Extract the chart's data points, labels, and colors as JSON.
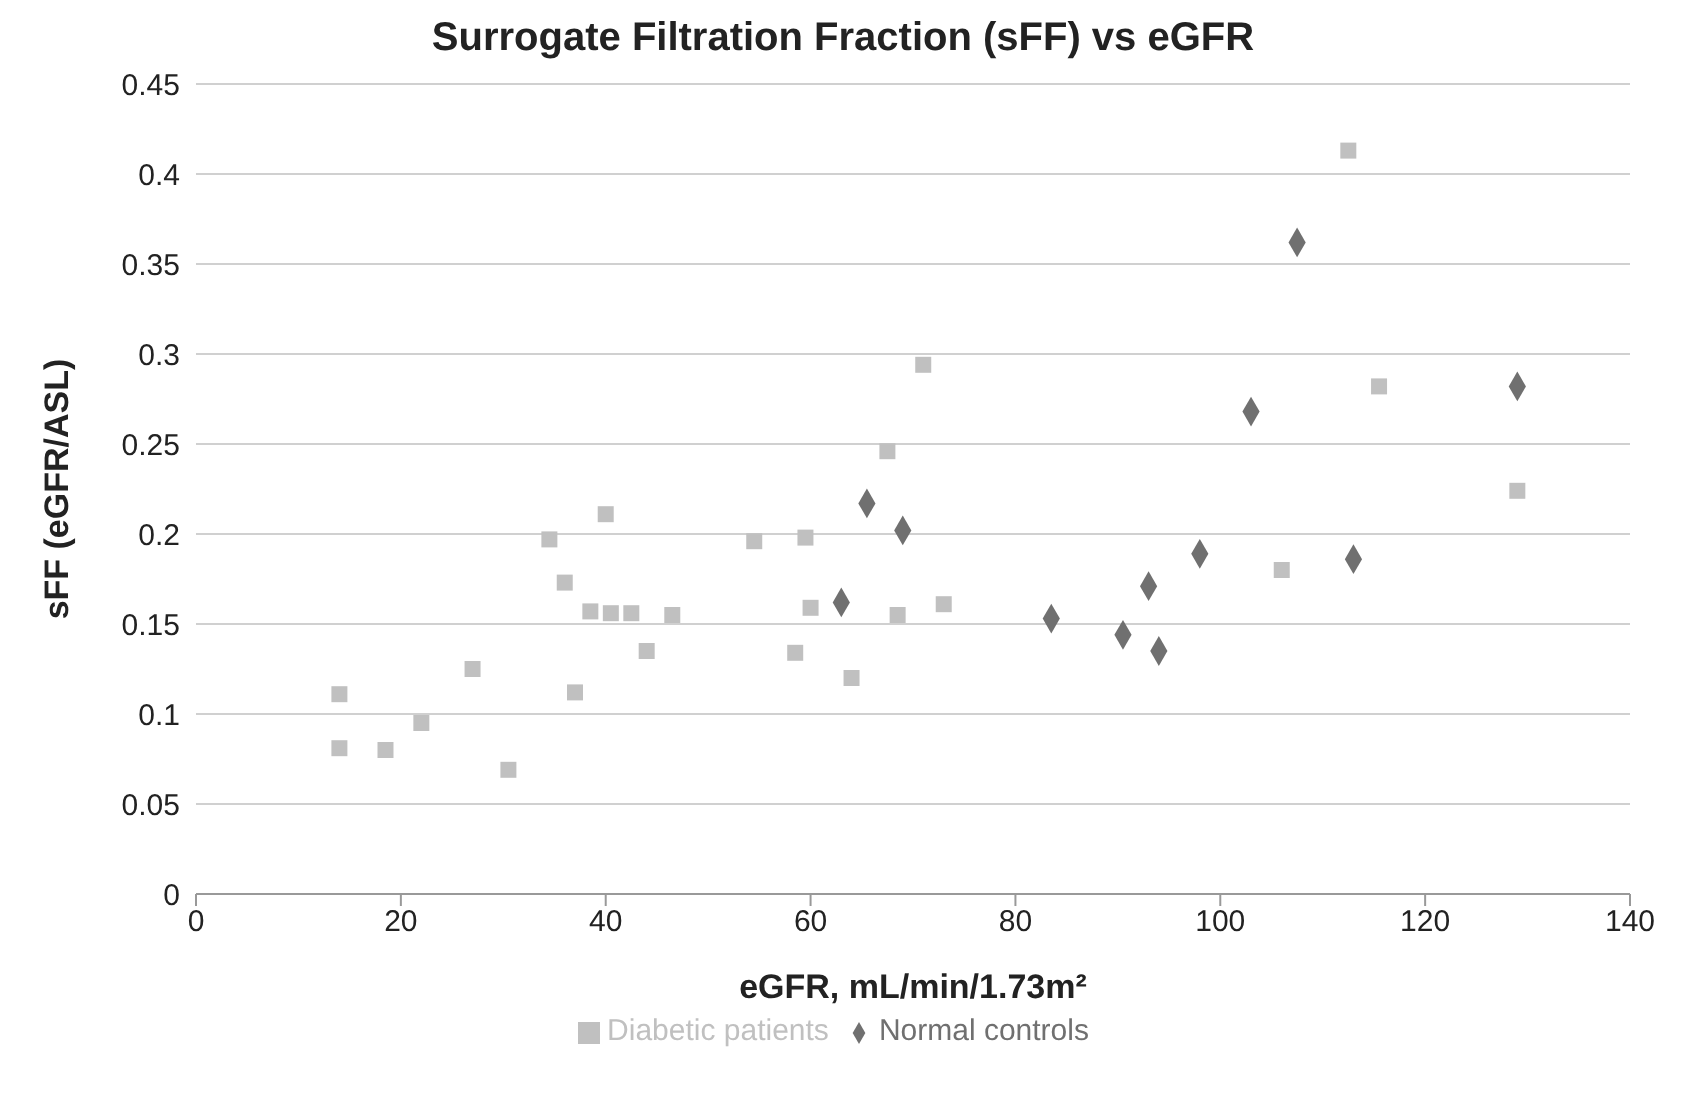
{
  "chart_data": {
    "type": "scatter",
    "title": "Surrogate Filtration Fraction (sFF) vs eGFR",
    "xlabel": "eGFR, mL/min/1.73m²",
    "ylabel": "sFF (eGFR/ASL)",
    "xlim": [
      0,
      140
    ],
    "xticks": [
      0,
      20,
      40,
      60,
      80,
      100,
      120,
      140
    ],
    "ylim": [
      0,
      0.45
    ],
    "yticks": [
      0,
      0.05,
      0.1,
      0.15,
      0.2,
      0.25,
      0.3,
      0.35,
      0.4,
      0.45
    ],
    "grid": "y",
    "legend": "bottom",
    "series": [
      {
        "name": "Normal controls",
        "color": "#707070",
        "marker": "diamond",
        "x": [
          63,
          65.5,
          69,
          83.5,
          90.5,
          93,
          94,
          98,
          103,
          107.5,
          113,
          129
        ],
        "values": [
          0.162,
          0.217,
          0.202,
          0.153,
          0.144,
          0.171,
          0.135,
          0.189,
          0.268,
          0.362,
          0.186,
          0.282
        ]
      },
      {
        "name": "Diabetic patients",
        "color": "#c0c0c0",
        "marker": "square",
        "x": [
          14,
          14,
          18.5,
          22,
          27,
          30.5,
          34.5,
          36,
          37,
          38.5,
          40,
          40.5,
          42.5,
          44,
          46.5,
          54.5,
          58.5,
          59.5,
          60,
          64,
          67.5,
          68.5,
          71,
          73,
          106,
          112.5,
          115.5,
          129
        ],
        "values": [
          0.111,
          0.081,
          0.08,
          0.095,
          0.125,
          0.069,
          0.197,
          0.173,
          0.112,
          0.157,
          0.211,
          0.156,
          0.156,
          0.135,
          0.155,
          0.196,
          0.134,
          0.198,
          0.159,
          0.12,
          0.246,
          0.155,
          0.294,
          0.161,
          0.18,
          0.413,
          0.282,
          0.224
        ]
      }
    ]
  }
}
